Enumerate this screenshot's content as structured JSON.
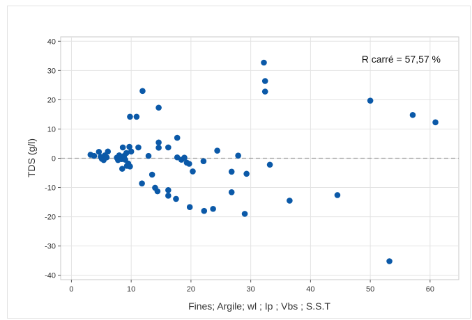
{
  "chart_data": {
    "type": "scatter",
    "title": "",
    "xlabel": "Fines; Argile; wl ; Ip ; Vbs ; S.S.T",
    "ylabel": "TDS (g/l)",
    "xlim": [
      -1.8,
      64.8
    ],
    "ylim": [
      -41.5,
      41.5
    ],
    "xticks": [
      0,
      10,
      20,
      30,
      40,
      50,
      60
    ],
    "yticks": [
      -40,
      -30,
      -20,
      -10,
      0,
      10,
      20,
      30,
      40
    ],
    "grid": true,
    "reference_line_y": 0,
    "annotation": "R carré = 57,57 %",
    "marker_color": "#0b59a8",
    "series": [
      {
        "points": [
          [
            3.2,
            1.2
          ],
          [
            3.8,
            0.8
          ],
          [
            4.6,
            2.2
          ],
          [
            4.9,
            0.5
          ],
          [
            5.1,
            -0.2
          ],
          [
            5.4,
            -0.6
          ],
          [
            5.6,
            1.0
          ],
          [
            5.9,
            0.3
          ],
          [
            6.1,
            2.3
          ],
          [
            7.6,
            0.2
          ],
          [
            7.8,
            -0.6
          ],
          [
            8.0,
            1.0
          ],
          [
            8.2,
            0.2
          ],
          [
            8.4,
            -0.3
          ],
          [
            8.6,
            3.7
          ],
          [
            8.8,
            0.8
          ],
          [
            9.0,
            -0.5
          ],
          [
            9.2,
            1.8
          ],
          [
            9.5,
            -1.8
          ],
          [
            9.7,
            3.9
          ],
          [
            10.0,
            2.3
          ],
          [
            8.5,
            -3.6
          ],
          [
            9.3,
            -2.6
          ],
          [
            9.8,
            -2.8
          ],
          [
            9.8,
            14.2
          ],
          [
            10.9,
            14.2
          ],
          [
            11.2,
            3.7
          ],
          [
            11.9,
            23.0
          ],
          [
            11.8,
            -8.6
          ],
          [
            12.9,
            0.8
          ],
          [
            13.5,
            -5.6
          ],
          [
            14.0,
            -10.1
          ],
          [
            14.4,
            -11.3
          ],
          [
            14.6,
            5.4
          ],
          [
            14.6,
            3.6
          ],
          [
            14.6,
            17.3
          ],
          [
            16.2,
            3.7
          ],
          [
            16.2,
            -10.9
          ],
          [
            16.2,
            -12.8
          ],
          [
            17.5,
            -13.9
          ],
          [
            17.7,
            0.3
          ],
          [
            17.7,
            7.0
          ],
          [
            18.4,
            -0.5
          ],
          [
            18.9,
            0.2
          ],
          [
            19.3,
            -1.5
          ],
          [
            19.7,
            -1.9
          ],
          [
            20.3,
            -4.5
          ],
          [
            19.8,
            -16.7
          ],
          [
            22.1,
            -1.0
          ],
          [
            22.2,
            -18.0
          ],
          [
            23.7,
            -17.3
          ],
          [
            24.4,
            2.6
          ],
          [
            26.8,
            -4.6
          ],
          [
            26.8,
            -11.6
          ],
          [
            27.9,
            0.9
          ],
          [
            29.0,
            -19.0
          ],
          [
            29.3,
            -5.3
          ],
          [
            32.2,
            32.7
          ],
          [
            32.4,
            26.4
          ],
          [
            32.4,
            22.8
          ],
          [
            33.2,
            -2.2
          ],
          [
            36.5,
            -14.5
          ],
          [
            44.5,
            -12.6
          ],
          [
            50.0,
            19.7
          ],
          [
            53.2,
            -35.2
          ],
          [
            57.1,
            14.8
          ],
          [
            60.9,
            12.3
          ]
        ]
      }
    ]
  }
}
